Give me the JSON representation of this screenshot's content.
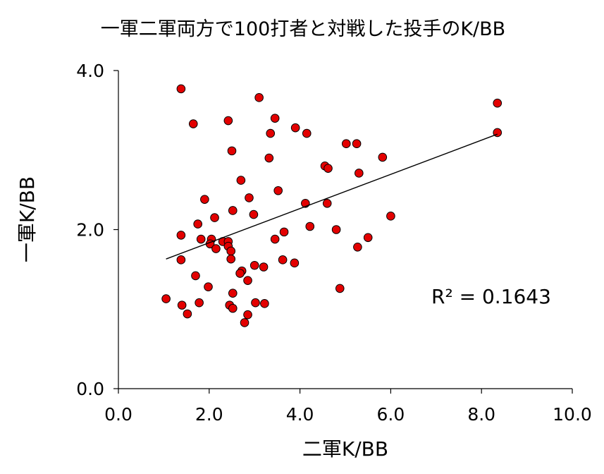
{
  "chart_data": {
    "type": "scatter",
    "title": "一軍二軍両方で100打者と対戦した投手のK/BB",
    "xlabel": "二軍K/BB",
    "ylabel": "一軍K/BB",
    "xlim": [
      0,
      10
    ],
    "ylim": [
      0,
      4
    ],
    "x_ticks": [
      "0.0",
      "2.0",
      "4.0",
      "6.0",
      "8.0",
      "10.0"
    ],
    "y_ticks": [
      "0.0",
      "2.0",
      "4.0"
    ],
    "grid": false,
    "legend": "none",
    "marker_color": "#e30000",
    "trendline": {
      "type": "linear",
      "x": [
        1.05,
        8.35
      ],
      "y": [
        1.63,
        3.2
      ],
      "label": "R² = 0.1643"
    },
    "points": [
      [
        1.38,
        3.77
      ],
      [
        1.65,
        3.33
      ],
      [
        2.42,
        3.37
      ],
      [
        3.1,
        3.66
      ],
      [
        3.45,
        3.4
      ],
      [
        3.35,
        3.21
      ],
      [
        3.9,
        3.28
      ],
      [
        4.15,
        3.21
      ],
      [
        8.35,
        3.59
      ],
      [
        8.35,
        3.22
      ],
      [
        2.5,
        2.99
      ],
      [
        3.32,
        2.9
      ],
      [
        4.55,
        2.8
      ],
      [
        4.62,
        2.77
      ],
      [
        5.02,
        3.08
      ],
      [
        5.25,
        3.08
      ],
      [
        5.82,
        2.91
      ],
      [
        5.3,
        2.71
      ],
      [
        2.7,
        2.62
      ],
      [
        2.88,
        2.4
      ],
      [
        1.9,
        2.38
      ],
      [
        3.52,
        2.49
      ],
      [
        2.52,
        2.24
      ],
      [
        2.98,
        2.19
      ],
      [
        4.12,
        2.33
      ],
      [
        4.6,
        2.33
      ],
      [
        6.0,
        2.17
      ],
      [
        2.12,
        2.15
      ],
      [
        1.75,
        2.07
      ],
      [
        4.22,
        2.04
      ],
      [
        3.65,
        1.97
      ],
      [
        4.8,
        2.0
      ],
      [
        1.38,
        1.93
      ],
      [
        1.82,
        1.88
      ],
      [
        2.05,
        1.88
      ],
      [
        2.3,
        1.85
      ],
      [
        2.42,
        1.85
      ],
      [
        2.02,
        1.82
      ],
      [
        2.42,
        1.79
      ],
      [
        2.15,
        1.76
      ],
      [
        2.48,
        1.73
      ],
      [
        3.45,
        1.88
      ],
      [
        5.5,
        1.9
      ],
      [
        5.27,
        1.78
      ],
      [
        1.38,
        1.62
      ],
      [
        2.48,
        1.63
      ],
      [
        3.62,
        1.62
      ],
      [
        3.88,
        1.58
      ],
      [
        2.72,
        1.48
      ],
      [
        2.68,
        1.45
      ],
      [
        3.0,
        1.55
      ],
      [
        3.2,
        1.53
      ],
      [
        1.7,
        1.42
      ],
      [
        2.85,
        1.36
      ],
      [
        1.98,
        1.28
      ],
      [
        4.88,
        1.26
      ],
      [
        2.52,
        1.2
      ],
      [
        1.05,
        1.13
      ],
      [
        1.4,
        1.05
      ],
      [
        1.78,
        1.08
      ],
      [
        2.45,
        1.05
      ],
      [
        2.52,
        1.01
      ],
      [
        3.02,
        1.08
      ],
      [
        3.22,
        1.07
      ],
      [
        1.52,
        0.94
      ],
      [
        2.85,
        0.93
      ],
      [
        2.78,
        0.83
      ]
    ]
  }
}
